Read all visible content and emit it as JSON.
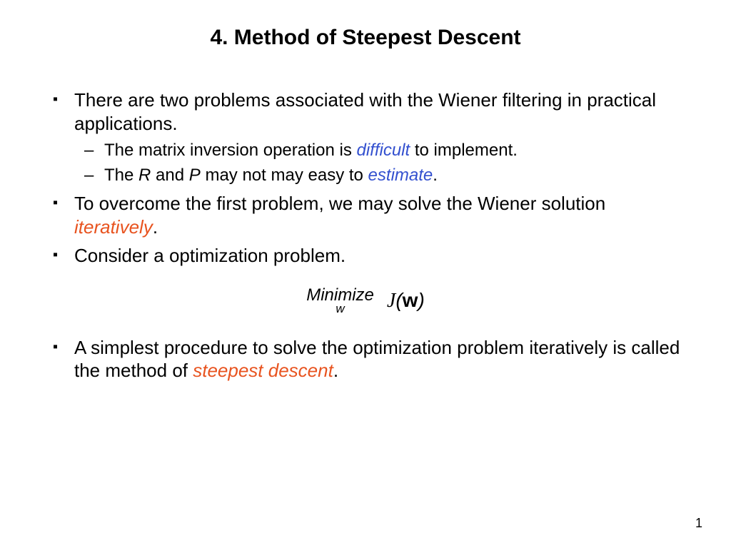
{
  "title": "4. Method of Steepest Descent",
  "bullets": {
    "b1": {
      "text": "There are two problems associated with the Wiener filtering in practical applications.",
      "sub1_pre": "The matrix inversion operation is ",
      "sub1_hi": "difficult",
      "sub1_post": " to implement.",
      "sub2_pre": "The ",
      "sub2_R": "R",
      "sub2_mid1": " and ",
      "sub2_P": "P",
      "sub2_mid2": " may not may easy to ",
      "sub2_hi": "estimate",
      "sub2_post": "."
    },
    "b2": {
      "pre": "To overcome the first problem, we may solve the Wiener solution ",
      "hi": "iteratively",
      "post": "."
    },
    "b3": {
      "text": "Consider a optimization problem."
    },
    "b4": {
      "pre": "A simplest procedure to solve the optimization problem iteratively is called the method of ",
      "hi": "steepest descent",
      "post": "."
    }
  },
  "formula": {
    "minimize": "Minimize",
    "sub": "w",
    "J": "J",
    "open": "(",
    "w": "w",
    "close": ")"
  },
  "page_number": "1",
  "colors": {
    "highlight_blue": "#3350cf",
    "highlight_red": "#e8531f",
    "text": "#000000",
    "background": "#ffffff"
  },
  "typography": {
    "title_fontsize": 30,
    "body_fontsize": 26,
    "sub_fontsize": 24,
    "pagenum_fontsize": 18,
    "font_family": "Arial"
  }
}
